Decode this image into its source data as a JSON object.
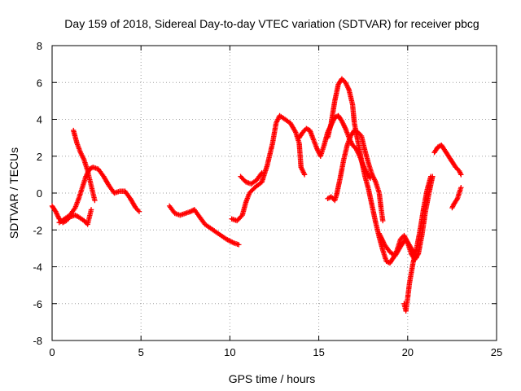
{
  "chart_data": {
    "type": "scatter",
    "title": "Day 159 of 2018, Sidereal Day-to-day VTEC variation (SDTVAR) for receiver pbcg",
    "xlabel": "GPS time / hours",
    "ylabel": "SDTVAR / TECUs",
    "xlim": [
      0,
      25
    ],
    "ylim": [
      -8,
      8
    ],
    "xticks": [
      "0",
      "5",
      "10",
      "15",
      "20",
      "25"
    ],
    "yticks": [
      "-8",
      "-6",
      "-4",
      "-2",
      "0",
      "2",
      "4",
      "6",
      "8"
    ],
    "grid": true,
    "legend": "none",
    "marker": "+",
    "color": "#ff0000",
    "series": [
      {
        "points": [
          [
            0.0,
            -0.7
          ],
          [
            0.2,
            -1.0
          ],
          [
            0.4,
            -1.4
          ],
          [
            0.6,
            -1.6
          ],
          [
            0.8,
            -1.5
          ],
          [
            1.0,
            -1.3
          ],
          [
            1.3,
            -1.2
          ],
          [
            1.5,
            -1.3
          ],
          [
            1.8,
            -1.5
          ],
          [
            2.0,
            -1.7
          ],
          [
            2.1,
            -1.3
          ],
          [
            2.2,
            -0.9
          ]
        ]
      },
      {
        "points": [
          [
            1.2,
            3.4
          ],
          [
            1.4,
            2.7
          ],
          [
            1.6,
            2.2
          ],
          [
            1.8,
            1.8
          ],
          [
            1.9,
            1.5
          ],
          [
            2.0,
            1.2
          ],
          [
            2.1,
            0.8
          ],
          [
            2.2,
            0.4
          ],
          [
            2.3,
            0.0
          ],
          [
            2.4,
            -0.4
          ]
        ]
      },
      {
        "points": [
          [
            0.4,
            -1.6
          ],
          [
            0.7,
            -1.4
          ],
          [
            1.0,
            -1.2
          ],
          [
            1.3,
            -0.8
          ],
          [
            1.5,
            -0.3
          ],
          [
            1.7,
            0.3
          ],
          [
            1.9,
            0.9
          ],
          [
            2.1,
            1.3
          ],
          [
            2.3,
            1.4
          ],
          [
            2.6,
            1.3
          ],
          [
            2.9,
            0.9
          ],
          [
            3.2,
            0.4
          ],
          [
            3.5,
            0.0
          ],
          [
            3.8,
            0.1
          ],
          [
            4.1,
            0.1
          ],
          [
            4.4,
            -0.3
          ],
          [
            4.7,
            -0.8
          ],
          [
            4.9,
            -1.0
          ]
        ]
      },
      {
        "points": [
          [
            6.6,
            -0.7
          ],
          [
            6.9,
            -1.1
          ],
          [
            7.2,
            -1.2
          ],
          [
            7.5,
            -1.1
          ],
          [
            7.8,
            -1.0
          ],
          [
            8.0,
            -0.9
          ],
          [
            8.3,
            -1.3
          ],
          [
            8.6,
            -1.7
          ],
          [
            8.9,
            -1.9
          ],
          [
            9.2,
            -2.1
          ],
          [
            9.5,
            -2.3
          ],
          [
            9.8,
            -2.5
          ],
          [
            10.2,
            -2.7
          ],
          [
            10.5,
            -2.8
          ]
        ]
      },
      {
        "points": [
          [
            10.1,
            -1.4
          ],
          [
            10.4,
            -1.5
          ],
          [
            10.7,
            -1.2
          ],
          [
            10.9,
            -0.5
          ],
          [
            11.1,
            0.0
          ],
          [
            11.4,
            0.3
          ],
          [
            11.8,
            0.6
          ],
          [
            12.1,
            1.5
          ],
          [
            12.4,
            2.7
          ],
          [
            12.6,
            3.8
          ],
          [
            12.8,
            4.2
          ],
          [
            13.1,
            4.0
          ],
          [
            13.4,
            3.8
          ],
          [
            13.7,
            3.3
          ],
          [
            13.9,
            2.7
          ],
          [
            14.0,
            1.4
          ],
          [
            14.2,
            1.0
          ]
        ]
      },
      {
        "points": [
          [
            10.6,
            0.9
          ],
          [
            10.9,
            0.6
          ],
          [
            11.2,
            0.5
          ],
          [
            11.5,
            0.7
          ],
          [
            11.8,
            1.1
          ]
        ]
      },
      {
        "points": [
          [
            13.9,
            3.0
          ],
          [
            14.1,
            3.3
          ],
          [
            14.3,
            3.5
          ],
          [
            14.5,
            3.4
          ],
          [
            14.7,
            2.9
          ],
          [
            14.9,
            2.4
          ],
          [
            15.1,
            2.0
          ],
          [
            15.3,
            2.6
          ],
          [
            15.5,
            3.3
          ],
          [
            15.7,
            3.7
          ],
          [
            15.9,
            4.1
          ],
          [
            16.1,
            4.2
          ],
          [
            16.3,
            3.9
          ],
          [
            16.5,
            3.5
          ],
          [
            16.7,
            3.0
          ],
          [
            16.9,
            2.6
          ],
          [
            17.1,
            2.4
          ],
          [
            17.3,
            2.0
          ],
          [
            17.5,
            1.5
          ],
          [
            17.7,
            1.1
          ],
          [
            17.9,
            0.8
          ]
        ]
      },
      {
        "points": [
          [
            15.5,
            -0.3
          ],
          [
            15.7,
            -0.2
          ],
          [
            15.9,
            -0.4
          ],
          [
            16.0,
            -0.1
          ],
          [
            16.2,
            0.8
          ],
          [
            16.4,
            1.8
          ],
          [
            16.6,
            2.6
          ],
          [
            16.8,
            3.1
          ],
          [
            17.0,
            3.4
          ],
          [
            17.2,
            3.3
          ],
          [
            17.4,
            3.1
          ],
          [
            17.6,
            2.3
          ],
          [
            17.8,
            1.6
          ],
          [
            18.0,
            1.0
          ],
          [
            18.2,
            0.6
          ],
          [
            18.4,
            0.0
          ],
          [
            18.5,
            -0.8
          ],
          [
            18.6,
            -1.5
          ]
        ]
      },
      {
        "points": [
          [
            15.5,
            3.0
          ],
          [
            15.7,
            3.8
          ],
          [
            15.9,
            5.0
          ],
          [
            16.1,
            5.9
          ],
          [
            16.3,
            6.2
          ],
          [
            16.5,
            6.0
          ],
          [
            16.7,
            5.6
          ],
          [
            16.9,
            4.8
          ],
          [
            17.0,
            3.8
          ],
          [
            17.2,
            2.8
          ],
          [
            17.4,
            1.8
          ],
          [
            17.6,
            0.9
          ],
          [
            17.8,
            0.2
          ],
          [
            18.0,
            -0.7
          ],
          [
            18.2,
            -1.6
          ],
          [
            18.4,
            -2.4
          ],
          [
            18.6,
            -3.1
          ],
          [
            18.8,
            -3.7
          ],
          [
            19.0,
            -3.8
          ],
          [
            19.2,
            -3.5
          ],
          [
            19.4,
            -3.1
          ],
          [
            19.6,
            -2.5
          ],
          [
            19.8,
            -2.3
          ],
          [
            20.0,
            -2.7
          ],
          [
            20.2,
            -3.3
          ],
          [
            20.4,
            -3.6
          ],
          [
            20.6,
            -3.3
          ],
          [
            20.8,
            -2.3
          ],
          [
            21.0,
            -1.0
          ],
          [
            21.2,
            0.0
          ],
          [
            21.4,
            0.9
          ]
        ]
      },
      {
        "points": [
          [
            18.4,
            -2.2
          ],
          [
            18.7,
            -2.8
          ],
          [
            19.0,
            -3.2
          ],
          [
            19.3,
            -3.4
          ],
          [
            19.6,
            -2.9
          ],
          [
            19.9,
            -2.5
          ],
          [
            20.2,
            -3.0
          ],
          [
            20.5,
            -3.5
          ]
        ]
      },
      {
        "points": [
          [
            19.8,
            -6.0
          ],
          [
            19.9,
            -6.4
          ],
          [
            20.0,
            -5.7
          ],
          [
            20.1,
            -4.9
          ],
          [
            20.3,
            -3.8
          ],
          [
            20.5,
            -3.0
          ],
          [
            20.7,
            -2.0
          ],
          [
            20.9,
            -0.8
          ],
          [
            21.1,
            0.2
          ],
          [
            21.3,
            0.9
          ]
        ]
      },
      {
        "points": [
          [
            21.5,
            2.2
          ],
          [
            21.7,
            2.5
          ],
          [
            21.9,
            2.6
          ],
          [
            22.1,
            2.3
          ],
          [
            22.3,
            2.0
          ],
          [
            22.5,
            1.7
          ],
          [
            22.7,
            1.4
          ],
          [
            22.9,
            1.2
          ],
          [
            23.0,
            1.0
          ]
        ]
      },
      {
        "points": [
          [
            22.5,
            -0.8
          ],
          [
            22.6,
            -0.6
          ],
          [
            22.8,
            -0.3
          ],
          [
            22.9,
            0.0
          ],
          [
            23.0,
            0.3
          ]
        ]
      }
    ]
  }
}
